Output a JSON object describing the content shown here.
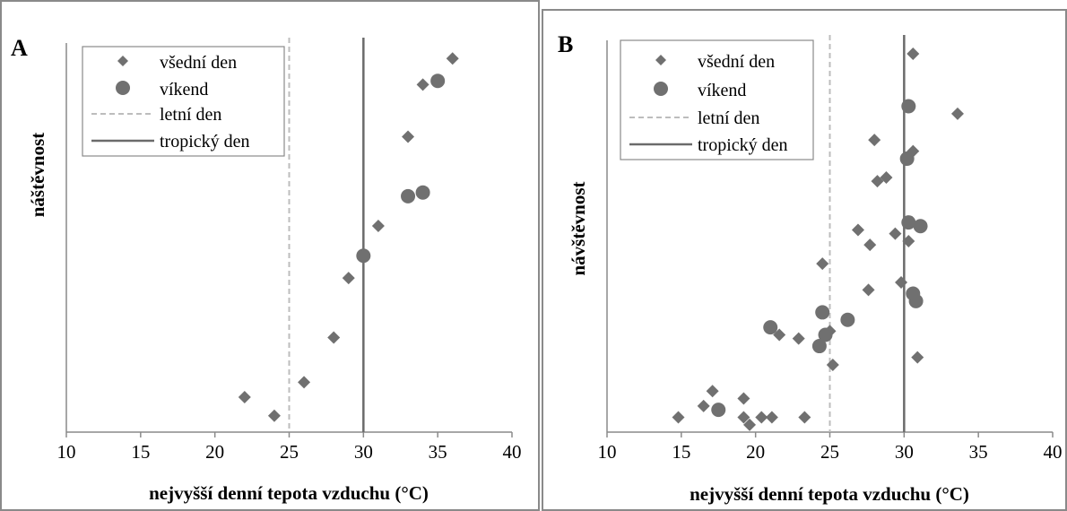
{
  "panels": [
    {
      "letter": "A",
      "ylabel": "náštěvnost",
      "xlabel": "nejvyšší denní tepota vzduchu (°C)",
      "legend": {
        "weekday": "všední den",
        "weekend": "víkend",
        "summer": "letní den",
        "tropical": "tropický den"
      }
    },
    {
      "letter": "B",
      "ylabel": "návštěvnost",
      "xlabel": "nejvyšší denní tepota vzduchu (°C)",
      "legend": {
        "weekday": "všední den",
        "weekend": "víkend",
        "summer": "letní den",
        "tropical": "tropický den"
      }
    }
  ],
  "chart_data": [
    {
      "type": "scatter",
      "panel": "A",
      "xlabel": "nejvyšší denní tepota vzduchu (°C)",
      "ylabel": "náštěvnost",
      "xlim": [
        10,
        40
      ],
      "xticks": [
        "10",
        "15",
        "20",
        "25",
        "30",
        "35",
        "40"
      ],
      "ylim": [
        0,
        100
      ],
      "y_tick_labels_shown": false,
      "legend_position": "top-left",
      "reference_lines": [
        {
          "name": "letní den",
          "x": 25,
          "style": "dashed",
          "color": "#bdbdbd"
        },
        {
          "name": "tropický den",
          "x": 30,
          "style": "solid",
          "color": "#6b6b6b"
        }
      ],
      "series": [
        {
          "name": "všední den",
          "marker": "diamond",
          "color": "#707070",
          "points": [
            {
              "x": 36,
              "y": 98
            },
            {
              "x": 34,
              "y": 91
            },
            {
              "x": 33,
              "y": 77
            },
            {
              "x": 31,
              "y": 53
            },
            {
              "x": 29,
              "y": 39
            },
            {
              "x": 28,
              "y": 23
            },
            {
              "x": 26,
              "y": 11
            },
            {
              "x": 22,
              "y": 7
            },
            {
              "x": 24,
              "y": 2
            }
          ]
        },
        {
          "name": "víkend",
          "marker": "circle",
          "color": "#707070",
          "points": [
            {
              "x": 35,
              "y": 92
            },
            {
              "x": 34,
              "y": 62
            },
            {
              "x": 33,
              "y": 61
            },
            {
              "x": 30,
              "y": 45
            }
          ]
        }
      ]
    },
    {
      "type": "scatter",
      "panel": "B",
      "xlabel": "nejvyšší denní tepota vzduchu (°C)",
      "ylabel": "návštěvnost",
      "xlim": [
        10,
        40
      ],
      "xticks": [
        "10",
        "15",
        "20",
        "25",
        "30",
        "35",
        "40"
      ],
      "ylim": [
        0,
        100
      ],
      "y_tick_labels_shown": false,
      "legend_position": "top-left",
      "reference_lines": [
        {
          "name": "letní den",
          "x": 25,
          "style": "dashed",
          "color": "#bdbdbd"
        },
        {
          "name": "tropický den",
          "x": 30,
          "style": "solid",
          "color": "#6b6b6b"
        }
      ],
      "series": [
        {
          "name": "všední den",
          "marker": "diamond",
          "color": "#707070",
          "points": [
            {
              "x": 30.6,
              "y": 100
            },
            {
              "x": 33.6,
              "y": 84
            },
            {
              "x": 28,
              "y": 77
            },
            {
              "x": 30.6,
              "y": 74
            },
            {
              "x": 28.8,
              "y": 67
            },
            {
              "x": 28.2,
              "y": 66
            },
            {
              "x": 26.9,
              "y": 53
            },
            {
              "x": 29.4,
              "y": 52
            },
            {
              "x": 30.3,
              "y": 50
            },
            {
              "x": 27.7,
              "y": 49
            },
            {
              "x": 24.5,
              "y": 44
            },
            {
              "x": 29.8,
              "y": 39
            },
            {
              "x": 27.6,
              "y": 37
            },
            {
              "x": 21.6,
              "y": 25
            },
            {
              "x": 22.9,
              "y": 24
            },
            {
              "x": 25,
              "y": 26
            },
            {
              "x": 25.2,
              "y": 17
            },
            {
              "x": 30.9,
              "y": 19
            },
            {
              "x": 17.1,
              "y": 10
            },
            {
              "x": 19.2,
              "y": 8
            },
            {
              "x": 16.5,
              "y": 6
            },
            {
              "x": 14.8,
              "y": 3
            },
            {
              "x": 19.2,
              "y": 3
            },
            {
              "x": 20.4,
              "y": 3
            },
            {
              "x": 21.1,
              "y": 3
            },
            {
              "x": 23.3,
              "y": 3
            },
            {
              "x": 19.6,
              "y": 1
            }
          ]
        },
        {
          "name": "víkend",
          "marker": "circle",
          "color": "#707070",
          "points": [
            {
              "x": 30.3,
              "y": 86
            },
            {
              "x": 30.2,
              "y": 72
            },
            {
              "x": 30.3,
              "y": 55
            },
            {
              "x": 31.1,
              "y": 54
            },
            {
              "x": 30.6,
              "y": 36
            },
            {
              "x": 30.8,
              "y": 34
            },
            {
              "x": 24.5,
              "y": 31
            },
            {
              "x": 26.2,
              "y": 29
            },
            {
              "x": 21,
              "y": 27
            },
            {
              "x": 24.7,
              "y": 25
            },
            {
              "x": 24.3,
              "y": 22
            },
            {
              "x": 17.5,
              "y": 5
            }
          ]
        }
      ]
    }
  ]
}
